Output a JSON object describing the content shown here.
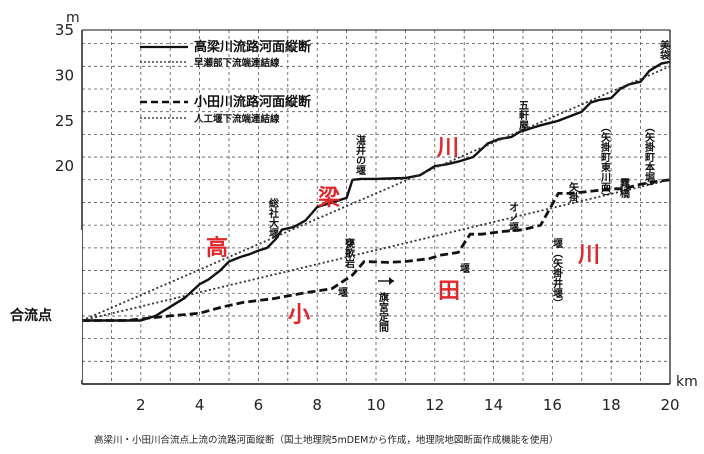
{
  "chart_data": {
    "type": "line",
    "caption": "高梁川・小田川合流点上流の流路河面縦断（国土地理院5mDEMから作成，地理院地図断面作成機能を使用）",
    "xlabel": "km",
    "ylabel": "m",
    "xlim": [
      0,
      20
    ],
    "ylim": [
      -4,
      35
    ],
    "x_ticks": [
      2,
      4,
      6,
      8,
      10,
      12,
      14,
      16,
      18,
      20
    ],
    "y_ticks": [
      20,
      25,
      30,
      35
    ],
    "grid": true,
    "legend_position": "top-left",
    "confluence_label": "合流点",
    "big_labels": {
      "takahashi": [
        "高",
        "梁",
        "川"
      ],
      "oda": [
        "小",
        "田",
        "川"
      ]
    },
    "series": [
      {
        "name": "高梁川流路河面縦断",
        "style": "solid",
        "x": [
          0,
          2.0,
          2.5,
          3.0,
          3.5,
          4.0,
          4.3,
          4.7,
          5.0,
          5.4,
          5.7,
          6.0,
          6.3,
          6.6,
          6.8,
          7.2,
          7.6,
          8.0,
          8.5,
          9.0,
          9.2,
          9.5,
          10.0,
          11.0,
          11.5,
          12.0,
          12.4,
          12.8,
          13.3,
          13.8,
          14.2,
          14.6,
          14.9,
          15.3,
          15.6,
          16.2,
          16.6,
          17.0,
          17.3,
          17.6,
          18.0,
          18.3,
          18.6,
          19.0,
          19.3,
          19.7,
          20.0
        ],
        "y": [
          3,
          3,
          3.5,
          4.5,
          5.5,
          7,
          7.5,
          8.5,
          9.5,
          10,
          10.3,
          10.7,
          11,
          12,
          13,
          13.3,
          14,
          15.5,
          16,
          16.5,
          18.5,
          18.6,
          18.6,
          18.7,
          19,
          20,
          20.2,
          20.5,
          21,
          22.5,
          23,
          23.2,
          23.8,
          24.2,
          24.5,
          25,
          25.5,
          26,
          27,
          27.3,
          27.5,
          28.5,
          29,
          29.3,
          30.5,
          31.3,
          31.5
        ]
      },
      {
        "name": "早瀬部下流端連結線",
        "style": "dotted",
        "x": [
          0,
          20
        ],
        "y": [
          3,
          31
        ]
      },
      {
        "name": "小田川流路河面縦断",
        "style": "dashed",
        "x": [
          0,
          1.5,
          3.0,
          4.0,
          4.8,
          5.5,
          6.5,
          7.5,
          8.5,
          9.2,
          9.6,
          10.4,
          11.0,
          11.8,
          12.2,
          12.8,
          13.2,
          13.6,
          14.3,
          15.0,
          15.6,
          16.2,
          16.6,
          17.2,
          18.0,
          18.4,
          19.0,
          19.5,
          20.0
        ],
        "y": [
          3,
          3,
          3.5,
          3.8,
          4.5,
          5,
          5.4,
          6,
          6.5,
          8,
          9.5,
          9.4,
          9.5,
          9.8,
          10.2,
          10.5,
          12.5,
          12.5,
          12.8,
          13,
          13.5,
          17,
          17,
          17.2,
          17.5,
          17.5,
          18,
          18.3,
          18.5
        ]
      },
      {
        "name": "人工堰下流端連結線",
        "style": "dotted",
        "x": [
          0,
          20
        ],
        "y": [
          3,
          18.5
        ]
      }
    ],
    "annotations": [
      {
        "text": "高梁川流路河面縦断"
      },
      {
        "text": "早瀬部下流端連結線"
      },
      {
        "text": "小田川流路河面縦断"
      },
      {
        "text": "人工堰下流端連結線"
      },
      {
        "text": "総社大堰"
      },
      {
        "text": "湛井の堰"
      },
      {
        "text": "五軒屋"
      },
      {
        "text": "美袋"
      },
      {
        "text": "（矢掛町東川面）"
      },
      {
        "text": "（矢掛町本堀）"
      },
      {
        "text": "霧橋"
      },
      {
        "text": "矢掛"
      },
      {
        "text": "オノ堰"
      },
      {
        "text": "堰（矢掛井堰）"
      },
      {
        "text": "甕歌岩"
      },
      {
        "text": "堰"
      },
      {
        "text": "堰"
      },
      {
        "text": "旗宮定間"
      }
    ]
  }
}
